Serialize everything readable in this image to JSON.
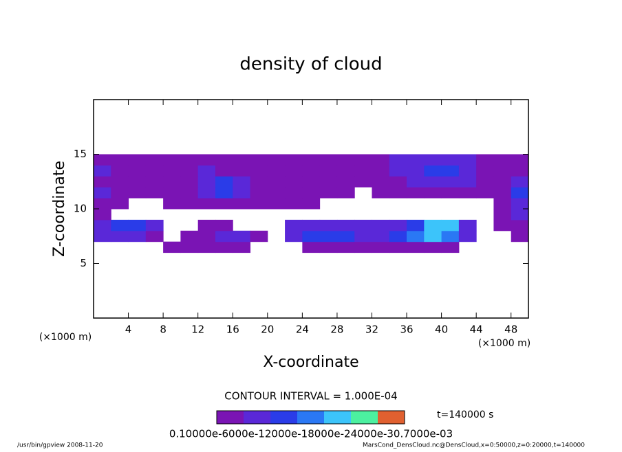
{
  "chart_data": {
    "type": "heatmap",
    "title": "density of cloud",
    "xlabel": "X-coordinate",
    "ylabel": "Z-coordinate",
    "xunit": "(×1000 m)",
    "yunit": "(×1000 m)",
    "xlim": [
      0,
      50
    ],
    "ylim": [
      0,
      20
    ],
    "xticks": [
      4,
      8,
      12,
      16,
      20,
      24,
      28,
      32,
      36,
      40,
      44,
      48
    ],
    "yticks": [
      5,
      10,
      15
    ],
    "x": [
      1,
      3,
      5,
      7,
      9,
      11,
      13,
      15,
      17,
      19,
      21,
      23,
      25,
      27,
      29,
      31,
      33,
      35,
      37,
      39,
      41,
      43,
      45,
      47,
      49
    ],
    "z": [
      6.5,
      7.5,
      8.5,
      9.5,
      10.5,
      11.5,
      12.5,
      13.5,
      14.5
    ],
    "cell_size": [
      2,
      1
    ],
    "values": [
      [
        null,
        null,
        null,
        null,
        0.0001,
        0.0001,
        0.0001,
        0.0001,
        0.0001,
        null,
        null,
        null,
        0.0001,
        0.0001,
        0.0001,
        0.0001,
        0.0001,
        0.0001,
        0.0001,
        0.0001,
        0.0001,
        null,
        null,
        null,
        null
      ],
      [
        0.0002,
        0.0002,
        0.0002,
        0.0001,
        null,
        0.0001,
        0.0001,
        0.0002,
        0.0002,
        0.0001,
        null,
        0.0002,
        0.0003,
        0.0003,
        0.0003,
        0.0002,
        0.0002,
        0.0003,
        0.0004,
        0.0005,
        0.0004,
        0.0002,
        null,
        null,
        0.0001
      ],
      [
        0.0002,
        0.0003,
        0.0003,
        0.0002,
        null,
        null,
        0.0001,
        0.0001,
        null,
        null,
        null,
        0.0002,
        0.0002,
        0.0002,
        0.0002,
        0.0002,
        0.0002,
        0.0002,
        0.0003,
        0.0005,
        0.0005,
        0.0002,
        null,
        0.0001,
        0.0001
      ],
      [
        0.0001,
        null,
        null,
        null,
        null,
        null,
        null,
        null,
        null,
        null,
        null,
        null,
        null,
        null,
        null,
        null,
        null,
        null,
        null,
        null,
        null,
        null,
        null,
        0.0001,
        0.0002
      ],
      [
        0.0001,
        0.0001,
        null,
        null,
        0.0001,
        0.0001,
        0.0001,
        0.0001,
        0.0001,
        0.0001,
        0.0001,
        0.0001,
        0.0001,
        null,
        null,
        null,
        null,
        null,
        null,
        null,
        null,
        null,
        null,
        0.0001,
        0.0002
      ],
      [
        0.0002,
        0.0001,
        0.0001,
        0.0001,
        0.0001,
        0.0001,
        0.0002,
        0.0003,
        0.0002,
        0.0001,
        0.0001,
        0.0001,
        0.0001,
        0.0001,
        0.0001,
        null,
        0.0001,
        0.0001,
        0.0001,
        0.0001,
        0.0001,
        0.0001,
        0.0001,
        0.0001,
        0.0003
      ],
      [
        0.0001,
        0.0001,
        0.0001,
        0.0001,
        0.0001,
        0.0001,
        0.0002,
        0.0003,
        0.0002,
        0.0001,
        0.0001,
        0.0001,
        0.0001,
        0.0001,
        0.0001,
        0.0001,
        0.0001,
        0.0001,
        0.0002,
        0.0002,
        0.0002,
        0.0002,
        0.0001,
        0.0001,
        0.0002
      ],
      [
        0.0002,
        0.0001,
        0.0001,
        0.0001,
        0.0001,
        0.0001,
        0.0002,
        0.0001,
        0.0001,
        0.0001,
        0.0001,
        0.0001,
        0.0001,
        0.0001,
        0.0001,
        0.0001,
        0.0001,
        0.0002,
        0.0002,
        0.0003,
        0.0003,
        0.0002,
        0.0001,
        0.0001,
        0.0001
      ],
      [
        0.0001,
        0.0001,
        0.0001,
        0.0001,
        0.0001,
        0.0001,
        0.0001,
        0.0001,
        0.0001,
        0.0001,
        0.0001,
        0.0001,
        0.0001,
        0.0001,
        0.0001,
        0.0001,
        0.0001,
        0.0002,
        0.0002,
        0.0002,
        0.0002,
        0.0002,
        0.0001,
        0.0001,
        0.0001
      ]
    ],
    "levels": [
      0.0001,
      0.0002,
      0.0003,
      0.0004,
      0.0005,
      0.0006,
      0.0007
    ],
    "colors": [
      "#7a14b4",
      "#5a28d8",
      "#2a3ce8",
      "#2a78f4",
      "#3cc4fa",
      "#4cf0a0",
      "#e06030"
    ],
    "contour_interval": "CONTOUR INTERVAL = 1.000E-04",
    "time_label": "t=140000 s",
    "colorbar_label": "0.10000e-6000e-12000e-18000e-24000e-30.7000e-03",
    "footer_left": "/usr/bin/gpview   2008-11-20",
    "footer_right": "MarsCond_DensCloud.nc@DensCloud,x=0:50000,z=0:20000,t=140000"
  }
}
